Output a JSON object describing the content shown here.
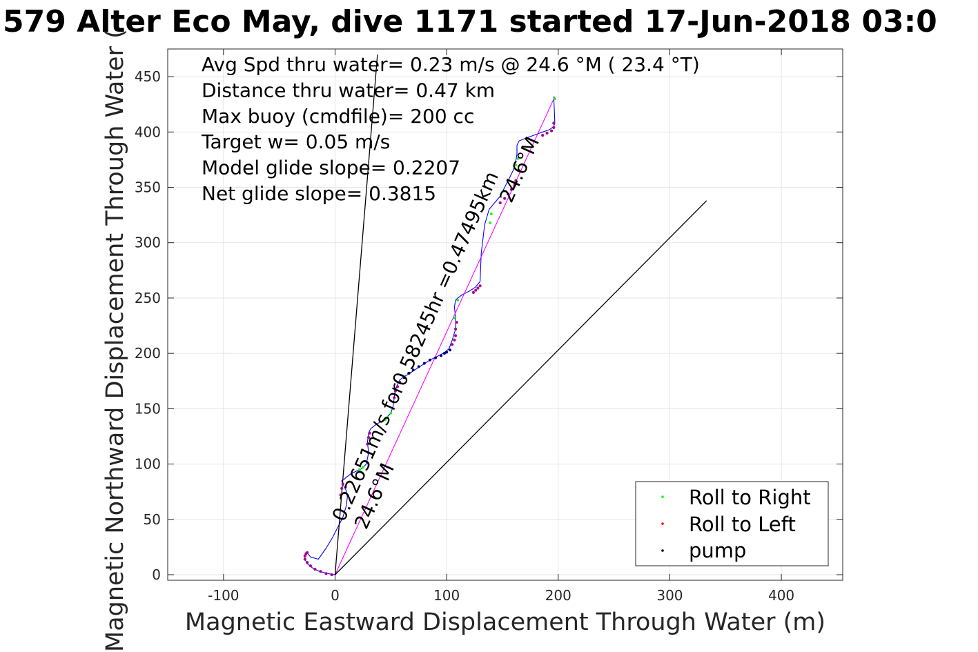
{
  "chart_data": {
    "type": "line",
    "title": "579 Alter Eco May, dive 1171 started 17-Jun-2018 03:0",
    "xlabel": "Magnetic Eastward Displacement Through Water (m)",
    "ylabel": "Magnetic Northward Displacement Through Water (",
    "xlim": [
      -150,
      455
    ],
    "ylim": [
      -5,
      475
    ],
    "x_ticks": [
      -100,
      0,
      100,
      200,
      300,
      400
    ],
    "y_ticks": [
      0,
      50,
      100,
      150,
      200,
      250,
      300,
      350,
      400,
      450
    ],
    "x_tick_labels": [
      "-100",
      "0",
      "100",
      "200",
      "300",
      "400"
    ],
    "y_tick_labels": [
      "0",
      "50",
      "100",
      "150",
      "200",
      "250",
      "300",
      "350",
      "400",
      "450"
    ],
    "grid": true,
    "legend_position": "bottom-right",
    "legend": [
      {
        "label": "Roll to Right",
        "color": "#00ff00"
      },
      {
        "label": "Roll to Left",
        "color": "#ff0000"
      },
      {
        "label": "pump",
        "color": "#000000"
      }
    ],
    "info_lines": [
      "Avg Spd thru water=  0.23 m/s @  24.6 °M ( 23.4 °T)",
      "Distance thru water=  0.47 km",
      "Max buoy (cmdfile)= 200 cc",
      "Target w= 0.05 m/s",
      "Model glide slope= 0.2207",
      "Net glide slope= 0.3815"
    ],
    "annotations": [
      {
        "text": "0.22651m/s for0.58245hr =0.47495km",
        "x": 8,
        "y": 47,
        "angle": -66
      },
      {
        "text": "24.6°M",
        "x": 28,
        "y": 40,
        "angle": -66
      },
      {
        "text": "24.6°M",
        "x": 158,
        "y": 335,
        "angle": -66
      }
    ],
    "series": [
      {
        "style": "track",
        "color": "#0000ff",
        "x": [
          0,
          -6,
          -14,
          -20,
          -25,
          -27,
          -27,
          -25,
          -22,
          -15,
          -8,
          -2,
          3,
          7,
          10,
          11,
          10,
          8,
          6,
          6,
          8,
          10,
          14,
          18,
          24,
          28,
          30,
          29,
          30,
          32,
          37,
          44,
          50,
          52,
          53,
          54,
          56,
          58,
          62,
          67,
          73,
          79,
          85,
          91,
          97,
          102,
          105,
          108,
          108,
          107,
          108,
          110,
          114,
          120,
          126,
          130,
          131,
          134,
          138,
          143,
          148,
          152,
          156,
          160,
          162,
          163,
          163,
          165,
          170,
          178,
          186,
          192,
          196,
          197,
          196
        ],
        "y": [
          0,
          1,
          3,
          6,
          10,
          14,
          18,
          20,
          16,
          14,
          24,
          34,
          44,
          52,
          62,
          70,
          76,
          80,
          84,
          85,
          86,
          88,
          91,
          93,
          96,
          100,
          110,
          120,
          128,
          132,
          136,
          140,
          146,
          152,
          160,
          167,
          172,
          176,
          179,
          182,
          186,
          190,
          194,
          197,
          200,
          204,
          212,
          222,
          232,
          242,
          248,
          250,
          253,
          256,
          260,
          265,
          290,
          316,
          330,
          336,
          342,
          350,
          358,
          366,
          374,
          380,
          388,
          392,
          394,
          397,
          400,
          402,
          405,
          408,
          432
        ]
      },
      {
        "style": "heading",
        "color": "#ff00ff",
        "x": [
          0,
          197
        ],
        "y": [
          0,
          432
        ]
      },
      {
        "style": "reference",
        "color": "#000000",
        "x": [
          0,
          38
        ],
        "y": [
          0,
          470
        ]
      },
      {
        "style": "reference",
        "color": "#000000",
        "x": [
          0,
          333
        ],
        "y": [
          0,
          338
        ]
      }
    ],
    "markers": {
      "left": {
        "color": "#aa0088",
        "x": [
          -3,
          -8,
          -13,
          -18,
          -22,
          -25,
          -27,
          -27,
          -26,
          -25,
          5,
          6,
          7,
          30,
          29,
          30,
          31,
          53,
          54,
          56,
          58,
          105,
          107,
          108,
          108,
          109,
          130,
          128,
          126,
          124,
          148,
          152,
          155,
          158,
          161,
          162,
          186,
          190,
          194,
          196,
          196
        ],
        "y": [
          0,
          1,
          3,
          5,
          8,
          11,
          14,
          17,
          19,
          20,
          72,
          78,
          82,
          110,
          118,
          124,
          128,
          160,
          166,
          170,
          174,
          208,
          212,
          216,
          222,
          228,
          261,
          259,
          257,
          255,
          336,
          340,
          344,
          348,
          352,
          356,
          397,
          399,
          401,
          404,
          408
        ]
      },
      "right": {
        "color": "#00ff00",
        "x": [
          22,
          25,
          45,
          47,
          50,
          107,
          110,
          139,
          140,
          162,
          164,
          197
        ],
        "y": [
          95,
          97,
          140,
          142,
          146,
          232,
          248,
          318,
          326,
          370,
          376,
          430
        ]
      },
      "pump": {
        "color": "#000080",
        "x": [
          62,
          66,
          70,
          75,
          80,
          85,
          90,
          95,
          98,
          100,
          103
        ],
        "y": [
          178,
          182,
          185,
          188,
          191,
          194,
          196,
          198,
          200,
          201,
          203
        ]
      }
    }
  }
}
